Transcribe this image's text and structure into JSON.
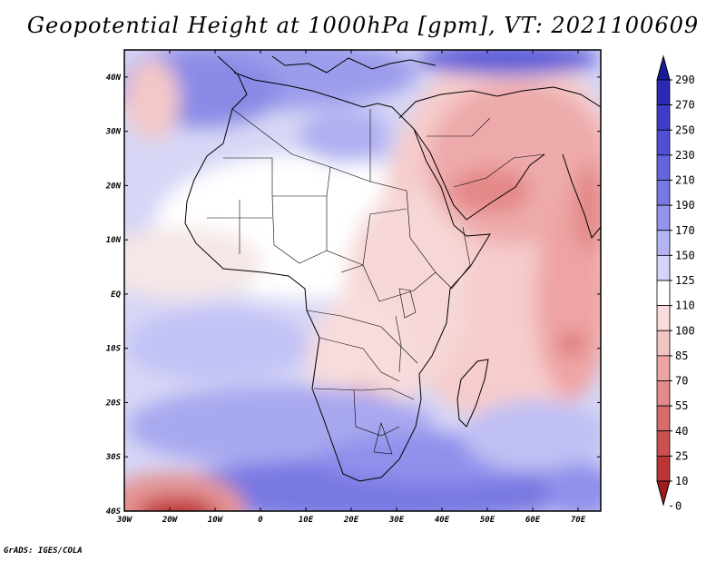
{
  "title": "Geopotential Height at 1000hPa [gpm], VT: 2021100609",
  "footer": "GrADS: IGES/COLA",
  "map": {
    "variable": "Geopotential Height at 1000hPa",
    "units": "gpm",
    "valid_time": "2021100609",
    "lat_labels": [
      "40N",
      "30N",
      "20N",
      "10N",
      "EQ",
      "10S",
      "20S",
      "30S",
      "40S"
    ],
    "lon_labels": [
      "30W",
      "20W",
      "10W",
      "0",
      "10E",
      "20E",
      "30E",
      "40E",
      "50E",
      "60E",
      "70E"
    ]
  },
  "colorbar": {
    "levels": [
      "290",
      "270",
      "250",
      "230",
      "210",
      "190",
      "170",
      "150",
      "125",
      "110",
      "100",
      "85",
      "70",
      "55",
      "40",
      "25",
      "10",
      "0"
    ],
    "colors": [
      "#1a1a9c",
      "#2a2ab4",
      "#3c3cc8",
      "#5050d4",
      "#6464dc",
      "#7878e4",
      "#9494ec",
      "#b4b4f4",
      "#d4d4fa",
      "#ffffff",
      "#fadcdc",
      "#f4c4c4",
      "#eca4a4",
      "#e48a8a",
      "#d86c6c",
      "#cc5050",
      "#bc3434",
      "#a01c1c"
    ]
  }
}
